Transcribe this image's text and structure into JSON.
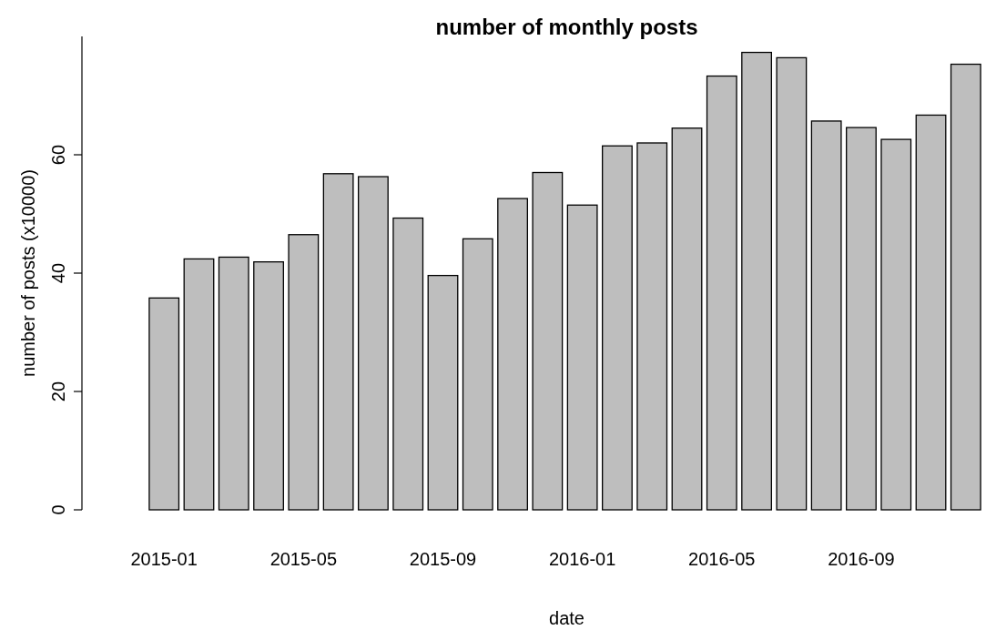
{
  "chart_data": {
    "type": "bar",
    "title": "number of monthly posts",
    "xlabel": "date",
    "ylabel": "number of posts (x10000)",
    "categories": [
      "2015-01",
      null,
      null,
      null,
      "2015-05",
      null,
      null,
      null,
      "2015-09",
      null,
      null,
      null,
      "2016-01",
      null,
      null,
      null,
      "2016-05",
      null,
      null,
      null,
      "2016-09",
      null,
      null,
      null
    ],
    "values": [
      35.8,
      42.4,
      42.7,
      41.9,
      46.5,
      56.8,
      56.3,
      49.3,
      39.6,
      45.8,
      52.6,
      57.0,
      51.5,
      61.5,
      62.0,
      64.5,
      73.3,
      77.3,
      76.4,
      65.7,
      64.6,
      62.6,
      66.7,
      75.3
    ],
    "color": "#bebebe",
    "ylim": [
      0,
      80
    ],
    "yticks": [
      0,
      20,
      40,
      60
    ],
    "grid": false
  }
}
